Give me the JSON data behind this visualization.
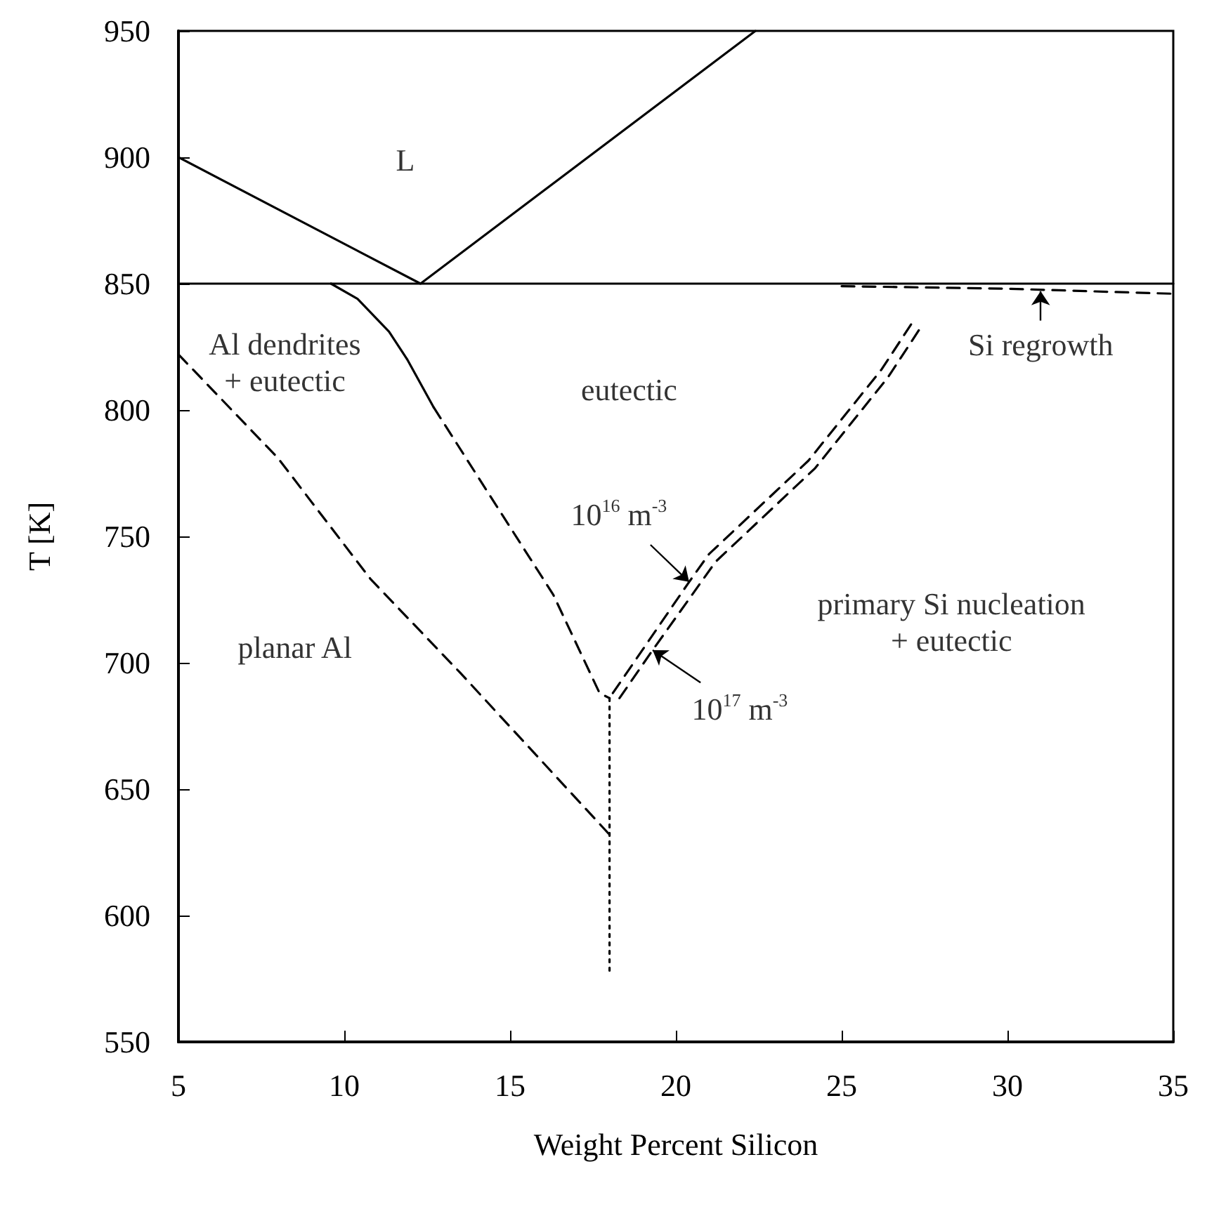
{
  "chart_data": {
    "type": "line",
    "xlabel": "Weight Percent Silicon",
    "ylabel": "T [K]",
    "xlim": [
      5,
      35
    ],
    "xticks": [
      5,
      10,
      15,
      20,
      25,
      30,
      35
    ],
    "ylim": [
      550,
      950
    ],
    "yticks": [
      550,
      600,
      650,
      700,
      750,
      800,
      850,
      900,
      950
    ],
    "grid": false,
    "marker": "none",
    "series": [
      {
        "color": "#000000",
        "line_style": "solid",
        "x": [
          5,
          12.3,
          22.4
        ],
        "values": [
          900,
          850,
          950
        ]
      },
      {
        "color": "#000000",
        "line_style": "solid",
        "x": [
          5,
          35
        ],
        "values": [
          850,
          850
        ]
      },
      {
        "color": "#000000",
        "line_style": "solid",
        "x": [
          9.6,
          10.4,
          11.35,
          11.9,
          12.7
        ],
        "values": [
          850,
          844,
          831,
          820,
          801
        ]
      },
      {
        "color": "#000000",
        "line_style": "dashed",
        "x": [
          12.7,
          14.4,
          16.3,
          17.7,
          18
        ],
        "values": [
          801,
          766,
          727,
          688,
          686
        ]
      },
      {
        "color": "#000000",
        "line_style": "dashed",
        "x": [
          5,
          8,
          10.8,
          13.5,
          18
        ],
        "values": [
          822,
          781,
          733,
          696,
          632
        ]
      },
      {
        "color": "#000000",
        "line_style": "dotted",
        "x": [
          18,
          18
        ],
        "values": [
          686,
          577
        ]
      },
      {
        "color": "#000000",
        "line_style": "dashed",
        "x": [
          18.1,
          20.4,
          21,
          24,
          26.2,
          27.2
        ],
        "values": [
          688,
          732,
          743,
          780,
          816,
          836
        ]
      },
      {
        "color": "#000000",
        "line_style": "dashed",
        "x": [
          18.3,
          19.3,
          21.2,
          24.2,
          26.4,
          27.4
        ],
        "values": [
          686,
          705,
          740,
          777,
          813,
          833
        ]
      },
      {
        "color": "#000000",
        "line_style": "dashed",
        "x": [
          25,
          30,
          35
        ],
        "values": [
          849,
          848,
          846
        ]
      }
    ],
    "annotations": [
      "L",
      "Al dendrites\n+ eutectic",
      "eutectic",
      {
        "text": "Si regrowth",
        "x": 31,
        "y": 847
      },
      {
        "text": "10$^{16}$ m$^{-3}$",
        "x": 20.4,
        "y": 732
      },
      {
        "text": "10$^{17}$ m$^{-3}$",
        "x": 19.3,
        "y": 705
      },
      "primary Si nucleation\n+ eutectic",
      "planar Al"
    ]
  }
}
